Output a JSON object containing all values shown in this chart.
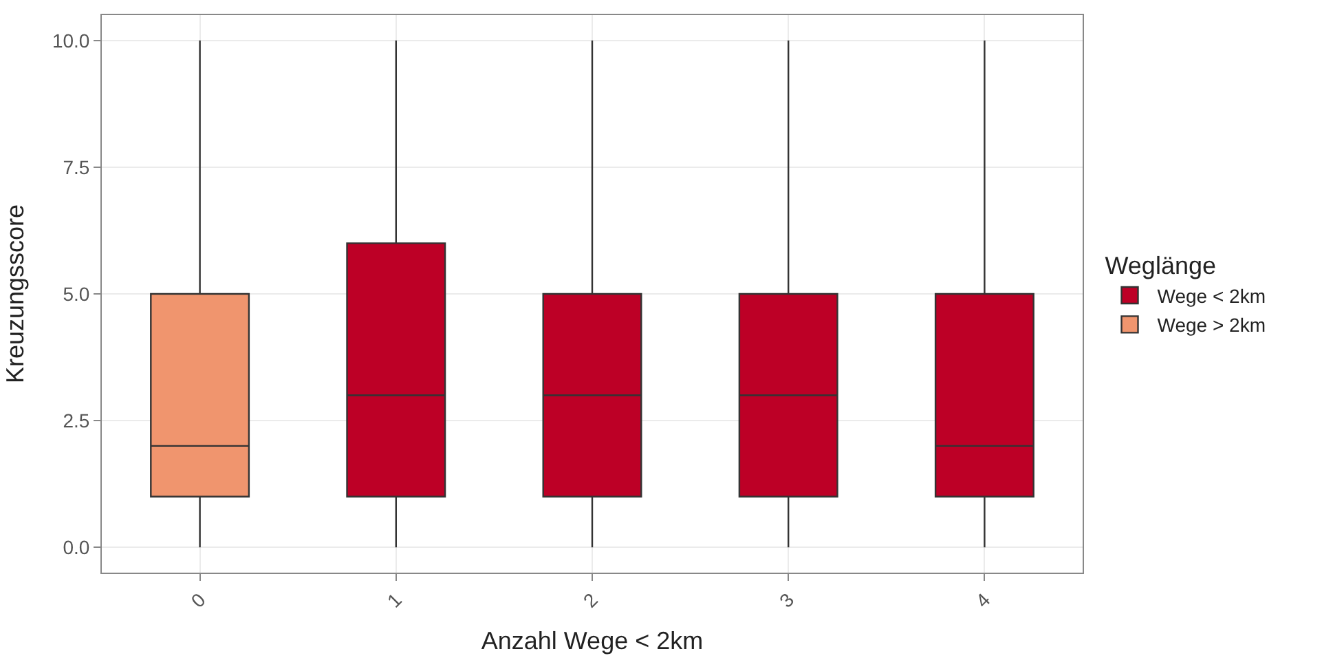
{
  "chart_data": {
    "type": "box",
    "xlabel": "Anzahl Wege < 2km",
    "ylabel": "Kreuzungsscore",
    "legend_title": "Weglänge",
    "categories": [
      "0",
      "1",
      "2",
      "3",
      "4"
    ],
    "ylim": [
      -0.5,
      10.5
    ],
    "yticks": [
      {
        "value": 0,
        "label": "0.0"
      },
      {
        "value": 2.5,
        "label": "2.5"
      },
      {
        "value": 5,
        "label": "5.0"
      },
      {
        "value": 7.5,
        "label": "7.5"
      },
      {
        "value": 10,
        "label": "10.0"
      }
    ],
    "grid": true,
    "legend": "right",
    "series": [
      {
        "name": "Wege < 2km",
        "color": "#bd0026",
        "boxes": [
          null,
          {
            "low": 0,
            "q1": 1,
            "median": 3,
            "q3": 6,
            "high": 10
          },
          {
            "low": 0,
            "q1": 1,
            "median": 3,
            "q3": 5,
            "high": 10
          },
          {
            "low": 0,
            "q1": 1,
            "median": 3,
            "q3": 5,
            "high": 10
          },
          {
            "low": 0,
            "q1": 1,
            "median": 2,
            "q3": 5,
            "high": 10
          }
        ]
      },
      {
        "name": "Wege > 2km",
        "color": "#f0956e",
        "boxes": [
          {
            "low": 0,
            "q1": 1,
            "median": 2,
            "q3": 5,
            "high": 10
          },
          null,
          null,
          null,
          null
        ]
      }
    ]
  }
}
